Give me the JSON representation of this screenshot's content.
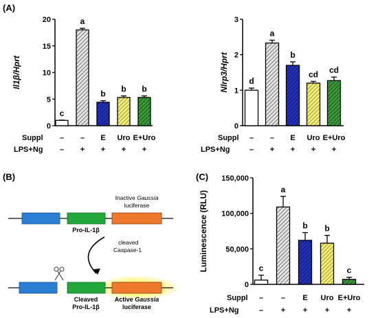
{
  "panels": {
    "a": "(A)",
    "b": "(B)",
    "c": "(C)"
  },
  "row_labels": {
    "suppl": "Suppl",
    "lps": "LPS+Ng"
  },
  "colors": {
    "control": "#ffffff",
    "lps": "#d9d9d9",
    "e": "#1f2aa6",
    "uro": "#f2ec6a",
    "e_uro": "#2f8a2f",
    "yellow_bar_variant": "#e8e26a"
  },
  "chart_data": [
    {
      "id": "il1b",
      "type": "bar",
      "ylabel": "Il1β/Hprt",
      "ylim": [
        0,
        20
      ],
      "yticks": [
        0,
        5,
        10,
        15,
        20
      ],
      "categories": [
        "1",
        "2",
        "3",
        "4",
        "5"
      ],
      "suppl": [
        "–",
        "–",
        "E",
        "Uro",
        "E+Uro"
      ],
      "lps": [
        "–",
        "+",
        "+",
        "+",
        "+"
      ],
      "values": [
        1.0,
        18.0,
        4.4,
        5.3,
        5.3
      ],
      "errors": [
        0.05,
        0.3,
        0.3,
        0.3,
        0.3
      ],
      "letters": [
        "c",
        "a",
        "b",
        "b",
        "b"
      ]
    },
    {
      "id": "nlrp3",
      "type": "bar",
      "ylabel": "Nlrp3/Hprt",
      "ylim": [
        0,
        3
      ],
      "yticks": [
        0,
        1,
        2,
        3
      ],
      "categories": [
        "1",
        "2",
        "3",
        "4",
        "5"
      ],
      "suppl": [
        "–",
        "–",
        "E",
        "Uro",
        "E+Uro"
      ],
      "lps": [
        "–",
        "+",
        "+",
        "+",
        "+"
      ],
      "values": [
        1.0,
        2.33,
        1.7,
        1.2,
        1.27
      ],
      "errors": [
        0.06,
        0.08,
        0.1,
        0.05,
        0.1
      ],
      "letters": [
        "d",
        "a",
        "b",
        "cd",
        "cd"
      ]
    },
    {
      "id": "luminescence",
      "type": "bar",
      "ylabel": "Luminescence (RLU)",
      "ylim": [
        0,
        150000
      ],
      "yticks": [
        0,
        50000,
        100000,
        150000
      ],
      "ytick_labels": [
        "0",
        "50,000",
        "100,000",
        "150,000"
      ],
      "categories": [
        "1",
        "2",
        "3",
        "4",
        "5"
      ],
      "suppl": [
        "–",
        "–",
        "E",
        "Uro",
        "E+Uro"
      ],
      "lps": [
        "–",
        "+",
        "+",
        "+",
        "+"
      ],
      "values": [
        6000,
        109000,
        62000,
        58000,
        7000
      ],
      "errors": [
        7000,
        15000,
        11000,
        11000,
        3000
      ],
      "letters": [
        "c",
        "a",
        "b",
        "b",
        "c"
      ]
    }
  ],
  "diagram": {
    "inactive_label_1": "Inactive",
    "inactive_label_italic": "Gaussia",
    "inactive_label_2": "luciferase",
    "pro_label": "Pro-IL-1β",
    "cleaved_caspase_1": "cleaved",
    "cleaved_caspase_2": "Caspase-1",
    "cleaved_pro_1": "Cleaved",
    "cleaved_pro_2": "Pro-IL-1β",
    "active_label_1": "Active",
    "active_label_italic": "Gaussia",
    "active_label_2": "luciferase",
    "scissors_icon": "scissors-icon"
  }
}
